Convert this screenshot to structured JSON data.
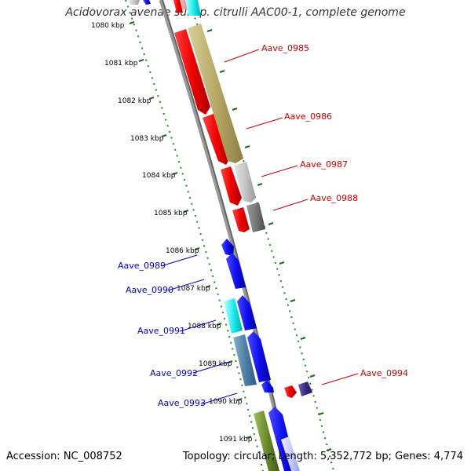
{
  "title": "Acidovorax avenae subsp. citrulli AAC00-1, complete genome",
  "footer": {
    "accession": "Accession: NC_008752",
    "topology": "Topology: circular; Length: 5,352,772 bp; Genes: 4,774"
  },
  "colors": {
    "forward_label": "#cc0000",
    "reverse_label": "#0000cc",
    "ruler_dots": "#228822",
    "backbone": "#888888"
  },
  "ticks": [
    "1080 kbp",
    "1081 kbp",
    "1082 kbp",
    "1083 kbp",
    "1084 kbp",
    "1085 kbp",
    "1086 kbp",
    "1087 kbp",
    "1088 kbp",
    "1089 kbp",
    "1090 kbp",
    "1091 kbp"
  ],
  "gene_labels": {
    "forward": [
      "Aave_0985",
      "Aave_0986",
      "Aave_0987",
      "Aave_0988",
      "Aave_0994"
    ],
    "reverse": [
      "Aave_0989",
      "Aave_0990",
      "Aave_0991",
      "Aave_0992",
      "Aave_0993"
    ]
  }
}
